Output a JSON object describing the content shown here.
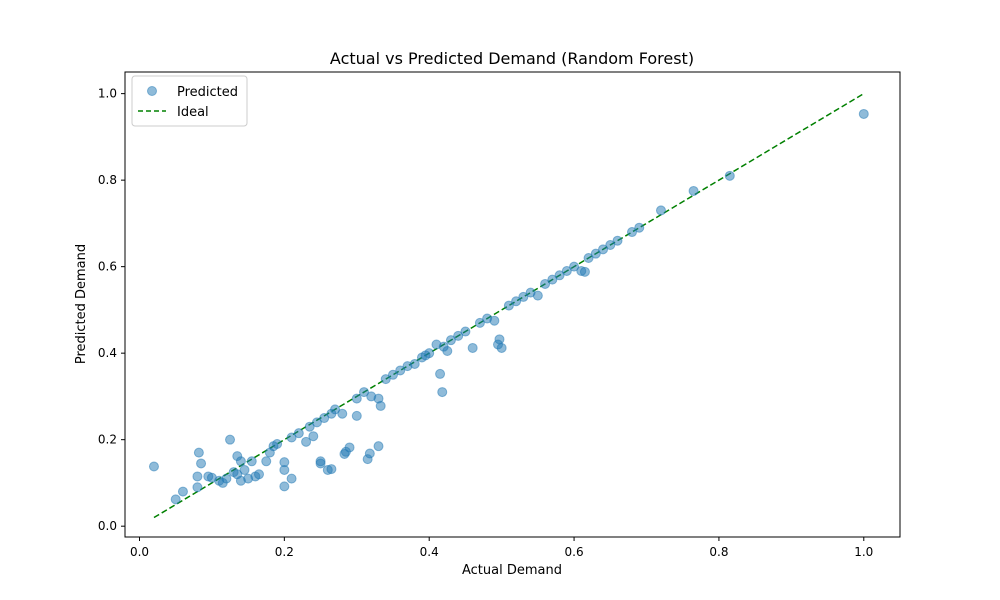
{
  "chart_data": {
    "type": "scatter",
    "title": "Actual vs Predicted Demand (Random Forest)",
    "xlabel": "Actual Demand",
    "ylabel": "Predicted Demand",
    "xlim": [
      -0.02,
      1.05
    ],
    "ylim": [
      -0.025,
      1.05
    ],
    "xticks": [
      0.0,
      0.2,
      0.4,
      0.6,
      0.8,
      1.0
    ],
    "yticks": [
      0.0,
      0.2,
      0.4,
      0.6,
      0.8,
      1.0
    ],
    "xtick_labels": [
      "0.0",
      "0.2",
      "0.4",
      "0.6",
      "0.8",
      "1.0"
    ],
    "ytick_labels": [
      "0.0",
      "0.2",
      "0.4",
      "0.6",
      "0.8",
      "1.0"
    ],
    "grid": false,
    "legend": {
      "position": "top-left",
      "entries": [
        "Predicted",
        "Ideal"
      ]
    },
    "series": [
      {
        "name": "Predicted",
        "kind": "scatter",
        "color": "#1f77b4",
        "alpha": 0.5,
        "x": [
          0.02,
          0.05,
          0.06,
          0.08,
          0.08,
          0.085,
          0.082,
          0.095,
          0.1,
          0.11,
          0.115,
          0.12,
          0.125,
          0.13,
          0.135,
          0.135,
          0.14,
          0.14,
          0.145,
          0.15,
          0.155,
          0.16,
          0.165,
          0.175,
          0.18,
          0.185,
          0.19,
          0.2,
          0.2,
          0.2,
          0.21,
          0.21,
          0.22,
          0.23,
          0.235,
          0.24,
          0.245,
          0.25,
          0.25,
          0.255,
          0.26,
          0.265,
          0.265,
          0.27,
          0.28,
          0.283,
          0.285,
          0.29,
          0.3,
          0.3,
          0.31,
          0.315,
          0.318,
          0.32,
          0.33,
          0.33,
          0.333,
          0.34,
          0.35,
          0.36,
          0.37,
          0.38,
          0.39,
          0.395,
          0.4,
          0.41,
          0.415,
          0.418,
          0.42,
          0.425,
          0.43,
          0.44,
          0.45,
          0.46,
          0.47,
          0.48,
          0.49,
          0.495,
          0.497,
          0.5,
          0.51,
          0.52,
          0.53,
          0.54,
          0.55,
          0.56,
          0.57,
          0.58,
          0.59,
          0.6,
          0.61,
          0.615,
          0.62,
          0.63,
          0.64,
          0.65,
          0.66,
          0.68,
          0.69,
          0.72,
          0.765,
          0.815,
          1.0
        ],
        "y": [
          0.138,
          0.062,
          0.08,
          0.09,
          0.115,
          0.145,
          0.17,
          0.115,
          0.112,
          0.105,
          0.1,
          0.11,
          0.2,
          0.125,
          0.162,
          0.12,
          0.105,
          0.15,
          0.13,
          0.11,
          0.15,
          0.115,
          0.12,
          0.15,
          0.17,
          0.185,
          0.19,
          0.148,
          0.13,
          0.092,
          0.11,
          0.205,
          0.215,
          0.195,
          0.23,
          0.208,
          0.24,
          0.15,
          0.145,
          0.25,
          0.13,
          0.132,
          0.26,
          0.27,
          0.26,
          0.167,
          0.172,
          0.182,
          0.255,
          0.295,
          0.31,
          0.155,
          0.168,
          0.3,
          0.185,
          0.295,
          0.278,
          0.34,
          0.35,
          0.36,
          0.37,
          0.375,
          0.39,
          0.395,
          0.4,
          0.42,
          0.352,
          0.31,
          0.415,
          0.405,
          0.43,
          0.44,
          0.45,
          0.412,
          0.47,
          0.48,
          0.475,
          0.42,
          0.432,
          0.412,
          0.51,
          0.52,
          0.53,
          0.54,
          0.533,
          0.56,
          0.57,
          0.58,
          0.59,
          0.6,
          0.59,
          0.588,
          0.62,
          0.63,
          0.64,
          0.65,
          0.66,
          0.68,
          0.69,
          0.73,
          0.775,
          0.81,
          0.953
        ]
      },
      {
        "name": "Ideal",
        "kind": "line",
        "style": "dashed",
        "color": "#008000",
        "x": [
          0.02,
          1.0
        ],
        "y": [
          0.02,
          1.0
        ]
      }
    ]
  }
}
